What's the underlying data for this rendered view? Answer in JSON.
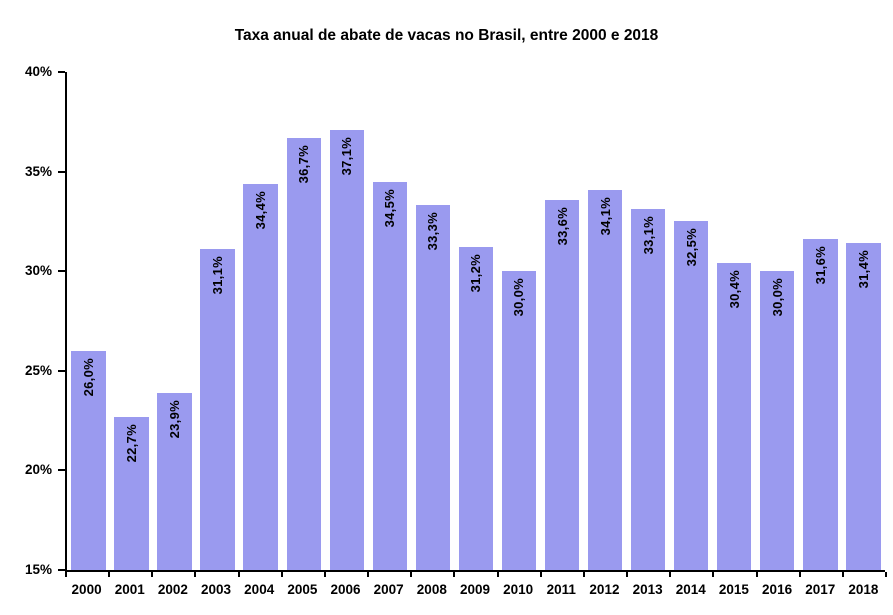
{
  "chart_data": {
    "type": "bar",
    "title": "Taxa anual de abate de vacas no Brasil, entre 2000 e 2018",
    "categories": [
      "2000",
      "2001",
      "2002",
      "2003",
      "2004",
      "2005",
      "2006",
      "2007",
      "2008",
      "2009",
      "2010",
      "2011",
      "2012",
      "2013",
      "2014",
      "2015",
      "2016",
      "2017",
      "2018"
    ],
    "values": [
      26.0,
      22.7,
      23.9,
      31.1,
      34.4,
      36.7,
      37.1,
      34.5,
      33.3,
      31.2,
      30.0,
      33.6,
      34.1,
      33.1,
      32.5,
      30.4,
      30.0,
      31.6,
      31.4
    ],
    "value_labels": [
      "26,0%",
      "22,7%",
      "23,9%",
      "31,1%",
      "34,4%",
      "36,7%",
      "37,1%",
      "34,5%",
      "33,3%",
      "31,2%",
      "30,0%",
      "33,6%",
      "34,1%",
      "33,1%",
      "32,5%",
      "30,4%",
      "30,0%",
      "31,6%",
      "31,4%"
    ],
    "xlabel": "",
    "ylabel": "",
    "ylim": [
      15,
      40
    ],
    "ytick_step": 5,
    "ytick_labels": [
      "15%",
      "20%",
      "25%",
      "30%",
      "35%",
      "40%"
    ],
    "grid": false,
    "legend_position": "none",
    "bar_color": "#9a9aef",
    "axis_color": "#000000",
    "label_color": "#000000"
  }
}
